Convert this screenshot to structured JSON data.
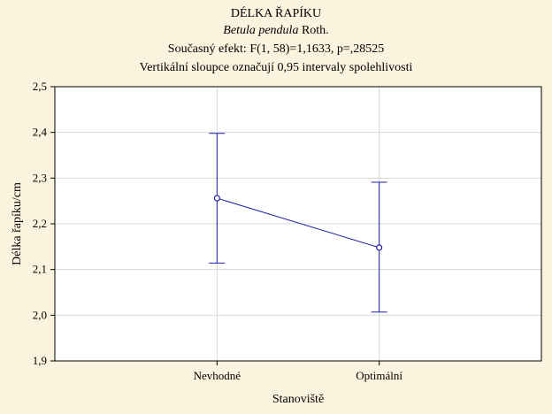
{
  "header": {
    "title": "DÉLKA ŘAPÍKU",
    "species_italic": "Betula pendula",
    "species_author": " Roth.",
    "effect_text": "Současný efekt: F(1, 58)=1,1633, p=,28525",
    "interval_note": "Vertikální sloupce označují 0,95 intervaly spolehlivosti"
  },
  "colors": {
    "background": "#fbf3dd",
    "plot_area": "#ffffff",
    "series": "#1f1fa8",
    "grid": "#d8d8d8"
  },
  "chart_data": {
    "type": "line",
    "xlabel": "Stanoviště",
    "ylabel": "Délka řapíku/cm",
    "categories": [
      "Nevhodné",
      "Optimální"
    ],
    "series": [
      {
        "means": [
          2.256,
          2.148
        ],
        "ci_low": [
          2.114,
          2.007
        ],
        "ci_high": [
          2.398,
          2.291
        ]
      }
    ],
    "ylim": [
      1.9,
      2.5
    ],
    "yticks": [
      "1,9",
      "2,0",
      "2,1",
      "2,2",
      "2,3",
      "2,4",
      "2,5"
    ],
    "grid": true,
    "error_bars": "0,95 CI"
  }
}
